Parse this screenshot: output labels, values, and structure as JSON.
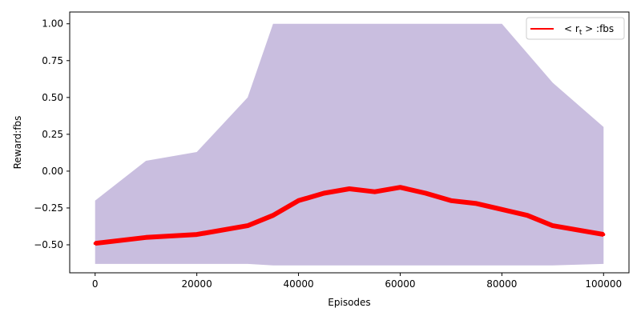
{
  "chart_data": {
    "type": "line",
    "title": "",
    "xlabel": "Episodes",
    "ylabel": "Reward:fbs",
    "xlim": [
      -5000,
      105000
    ],
    "ylim": [
      -0.69,
      1.08
    ],
    "xticks": [
      0,
      20000,
      40000,
      60000,
      80000,
      100000
    ],
    "xtick_labels": [
      "0",
      "20000",
      "40000",
      "60000",
      "80000",
      "100000"
    ],
    "yticks": [
      -0.5,
      -0.25,
      0.0,
      0.25,
      0.5,
      0.75,
      1.0
    ],
    "ytick_labels": [
      "−0.50",
      "−0.25",
      "0.00",
      "0.25",
      "0.50",
      "0.75",
      "1.00"
    ],
    "grid": false,
    "legend_position": "upper right",
    "band": {
      "color": "#9c88c4",
      "x": [
        0,
        10000,
        20000,
        30000,
        35000,
        40000,
        50000,
        60000,
        70000,
        80000,
        90000,
        100000
      ],
      "lower": [
        -0.63,
        -0.63,
        -0.63,
        -0.63,
        -0.64,
        -0.64,
        -0.64,
        -0.64,
        -0.64,
        -0.64,
        -0.64,
        -0.63
      ],
      "upper": [
        -0.2,
        0.07,
        0.13,
        0.5,
        1.0,
        1.0,
        1.0,
        1.0,
        1.0,
        1.0,
        0.6,
        0.3
      ]
    },
    "series": [
      {
        "name": "<r_t>:fbs",
        "color": "#ff0000",
        "x": [
          0,
          10000,
          20000,
          30000,
          35000,
          40000,
          45000,
          50000,
          55000,
          60000,
          65000,
          70000,
          75000,
          80000,
          85000,
          90000,
          95000,
          100000
        ],
        "y": [
          -0.49,
          -0.45,
          -0.43,
          -0.37,
          -0.3,
          -0.2,
          -0.15,
          -0.12,
          -0.14,
          -0.11,
          -0.15,
          -0.2,
          -0.22,
          -0.26,
          -0.3,
          -0.37,
          -0.4,
          -0.43
        ]
      }
    ]
  },
  "legend": {
    "prefix": "< r",
    "subscript": "t",
    "suffix": " > :fbs"
  }
}
